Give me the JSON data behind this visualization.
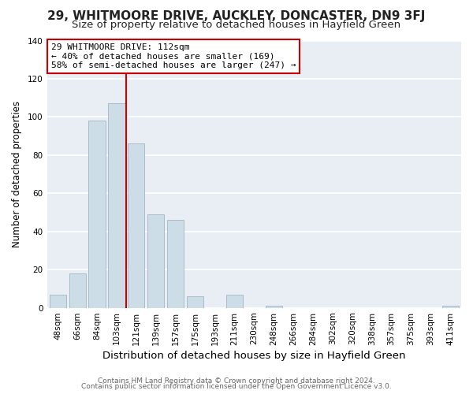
{
  "title": "29, WHITMOORE DRIVE, AUCKLEY, DONCASTER, DN9 3FJ",
  "subtitle": "Size of property relative to detached houses in Hayfield Green",
  "xlabel": "Distribution of detached houses by size in Hayfield Green",
  "ylabel": "Number of detached properties",
  "bar_labels": [
    "48sqm",
    "66sqm",
    "84sqm",
    "103sqm",
    "121sqm",
    "139sqm",
    "157sqm",
    "175sqm",
    "193sqm",
    "211sqm",
    "230sqm",
    "248sqm",
    "266sqm",
    "284sqm",
    "302sqm",
    "320sqm",
    "338sqm",
    "357sqm",
    "375sqm",
    "393sqm",
    "411sqm"
  ],
  "bar_values": [
    7,
    18,
    98,
    107,
    86,
    49,
    46,
    6,
    0,
    7,
    0,
    1,
    0,
    0,
    0,
    0,
    0,
    0,
    0,
    0,
    1
  ],
  "bar_color": "#ccdde8",
  "bar_edge_color": "#aabccc",
  "highlight_line_color": "#cc0000",
  "ylim": [
    0,
    140
  ],
  "yticks": [
    0,
    20,
    40,
    60,
    80,
    100,
    120,
    140
  ],
  "annotation_title": "29 WHITMOORE DRIVE: 112sqm",
  "annotation_line1": "← 40% of detached houses are smaller (169)",
  "annotation_line2": "58% of semi-detached houses are larger (247) →",
  "annotation_box_color": "#ffffff",
  "annotation_box_edge": "#cc0000",
  "footer1": "Contains HM Land Registry data © Crown copyright and database right 2024.",
  "footer2": "Contains public sector information licensed under the Open Government Licence v3.0.",
  "bg_color": "#e8eef4",
  "plot_bg_color": "#e8eef4",
  "grid_color": "#ffffff",
  "title_fontsize": 11,
  "subtitle_fontsize": 9.5,
  "xlabel_fontsize": 9.5,
  "ylabel_fontsize": 8.5,
  "tick_fontsize": 7.5,
  "annotation_fontsize": 8,
  "footer_fontsize": 6.5,
  "line_x_index": 3.5
}
